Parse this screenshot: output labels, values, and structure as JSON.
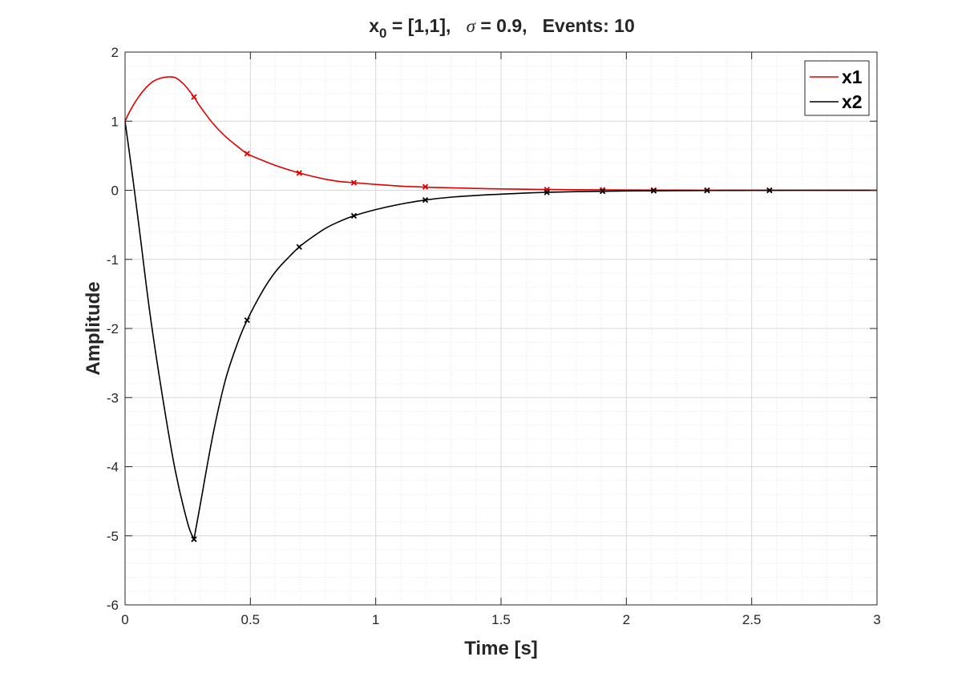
{
  "chart_data": {
    "type": "line",
    "title": {
      "prefix": "x",
      "subscript": "0",
      "after_sub": " = [1,1],   ",
      "sigma": "σ",
      "rest": " = 0.9,   Events: 10"
    },
    "xlabel": "Time [s]",
    "ylabel": "Amplitude",
    "xlim": [
      0,
      3
    ],
    "ylim": [
      -6,
      2
    ],
    "xticks": [
      0,
      0.5,
      1,
      1.5,
      2,
      2.5,
      3
    ],
    "xtick_labels": [
      "0",
      "0.5",
      "1",
      "1.5",
      "2",
      "2.5",
      "3"
    ],
    "yticks": [
      -6,
      -5,
      -4,
      -3,
      -2,
      -1,
      0,
      1,
      2
    ],
    "ytick_labels": [
      "-6",
      "-5",
      "-4",
      "-3",
      "-2",
      "-1",
      "0",
      "1",
      "2"
    ],
    "grid": true,
    "minor_grid": true,
    "legend_position": "top-right",
    "series": [
      {
        "name": "x1",
        "color": "#e00000",
        "x": [
          0,
          0.02,
          0.05,
          0.08,
          0.11,
          0.14,
          0.17,
          0.2,
          0.23,
          0.25,
          0.275,
          0.3,
          0.35,
          0.4,
          0.45,
          0.487,
          0.55,
          0.6,
          0.65,
          0.695,
          0.75,
          0.8,
          0.85,
          0.913,
          1.0,
          1.1,
          1.2,
          1.3,
          1.45,
          1.6,
          1.683,
          1.8,
          1.905,
          2.0,
          2.109,
          2.2,
          2.322,
          2.45,
          2.571,
          2.7,
          2.85,
          3.0
        ],
        "y": [
          1.0,
          1.15,
          1.33,
          1.47,
          1.57,
          1.62,
          1.64,
          1.63,
          1.55,
          1.47,
          1.35,
          1.21,
          0.97,
          0.78,
          0.63,
          0.53,
          0.43,
          0.36,
          0.3,
          0.25,
          0.2,
          0.16,
          0.13,
          0.11,
          0.085,
          0.06,
          0.045,
          0.035,
          0.023,
          0.015,
          0.012,
          0.008,
          0.006,
          0.004,
          0.003,
          0.002,
          0.001,
          0.001,
          0.0,
          0.0,
          0.0,
          0.0
        ]
      },
      {
        "name": "x2",
        "color": "#000000",
        "x": [
          0,
          0.03,
          0.06,
          0.1,
          0.15,
          0.2,
          0.25,
          0.275,
          0.3,
          0.35,
          0.4,
          0.45,
          0.487,
          0.55,
          0.6,
          0.65,
          0.695,
          0.75,
          0.8,
          0.85,
          0.913,
          1.0,
          1.1,
          1.2,
          1.3,
          1.45,
          1.6,
          1.683,
          1.8,
          1.905,
          2.0,
          2.109,
          2.2,
          2.322,
          2.45,
          2.571,
          2.7,
          2.85,
          3.0
        ],
        "y": [
          1.0,
          0.2,
          -0.65,
          -1.8,
          -3.0,
          -4.05,
          -4.82,
          -5.05,
          -4.55,
          -3.55,
          -2.75,
          -2.2,
          -1.88,
          -1.45,
          -1.18,
          -0.98,
          -0.82,
          -0.67,
          -0.55,
          -0.46,
          -0.37,
          -0.28,
          -0.2,
          -0.14,
          -0.1,
          -0.065,
          -0.04,
          -0.03,
          -0.02,
          -0.015,
          -0.01,
          -0.007,
          -0.005,
          -0.003,
          -0.002,
          -0.001,
          0.0,
          0.0,
          0.0
        ]
      }
    ],
    "events": {
      "x1": {
        "x": [
          0.275,
          0.487,
          0.695,
          0.913,
          1.198,
          1.683,
          1.905,
          2.109,
          2.322,
          2.571
        ],
        "y": [
          1.35,
          0.53,
          0.25,
          0.11,
          0.05,
          0.01,
          0.005,
          0.003,
          0.001,
          0.0
        ]
      },
      "x2": {
        "x": [
          0.275,
          0.487,
          0.695,
          0.913,
          1.198,
          1.683,
          1.905,
          2.109,
          2.322,
          2.571
        ],
        "y": [
          -5.05,
          -1.88,
          -0.82,
          -0.37,
          -0.14,
          -0.03,
          -0.015,
          -0.007,
          -0.003,
          -0.001
        ]
      }
    }
  }
}
